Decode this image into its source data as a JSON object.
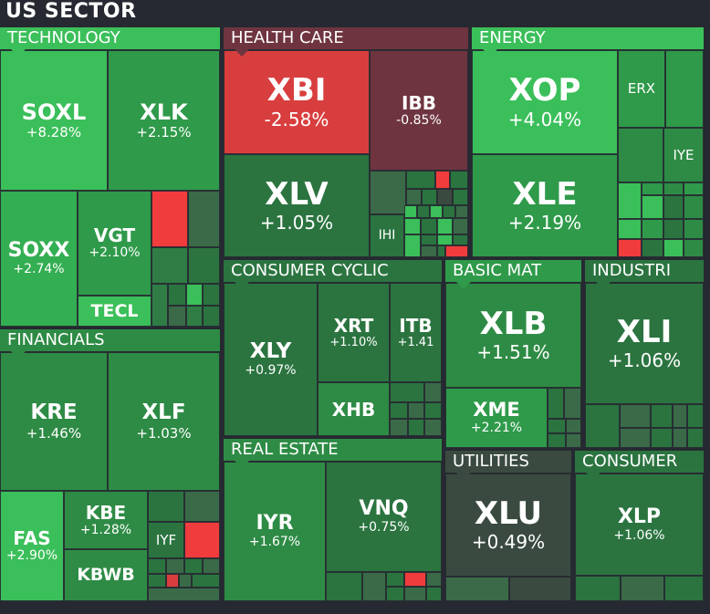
{
  "title": "US SECTOR",
  "colors": {
    "background": "#262931",
    "bright_green": "#3bbf5a",
    "green": "#2f9a4a",
    "dark_green": "#2e7a45",
    "red": "#f03c3c",
    "maroon": "#6e3540"
  },
  "sectors": {
    "technology": {
      "label": "TECHNOLOGY",
      "tiles": {
        "soxl": {
          "sym": "SOXL",
          "chg": "+8.28%"
        },
        "xlk": {
          "sym": "XLK",
          "chg": "+2.15%"
        },
        "soxx": {
          "sym": "SOXX",
          "chg": "+2.74%"
        },
        "vgt": {
          "sym": "VGT",
          "chg": "+2.10%"
        },
        "tecl": {
          "sym": "TECL"
        }
      }
    },
    "health_care": {
      "label": "HEALTH CARE",
      "tiles": {
        "xbi": {
          "sym": "XBI",
          "chg": "-2.58%"
        },
        "ibb": {
          "sym": "IBB",
          "chg": "-0.85%"
        },
        "xlv": {
          "sym": "XLV",
          "chg": "+1.05%"
        },
        "ihi": {
          "sym": "IHI"
        }
      }
    },
    "energy": {
      "label": "ENERGY",
      "tiles": {
        "xop": {
          "sym": "XOP",
          "chg": "+4.04%"
        },
        "erx": {
          "sym": "ERX"
        },
        "iye": {
          "sym": "IYE"
        },
        "xle": {
          "sym": "XLE",
          "chg": "+2.19%"
        }
      }
    },
    "financials": {
      "label": "FINANCIALS",
      "tiles": {
        "kre": {
          "sym": "KRE",
          "chg": "+1.46%"
        },
        "xlf": {
          "sym": "XLF",
          "chg": "+1.03%"
        },
        "fas": {
          "sym": "FAS",
          "chg": "+2.90%"
        },
        "kbe": {
          "sym": "KBE",
          "chg": "+1.28%"
        },
        "kbwb": {
          "sym": "KBWB"
        },
        "iyf": {
          "sym": "IYF"
        }
      }
    },
    "consumer_cyclic": {
      "label": "CONSUMER CYCLIC",
      "tiles": {
        "xly": {
          "sym": "XLY",
          "chg": "+0.97%"
        },
        "xrt": {
          "sym": "XRT",
          "chg": "+1.10%"
        },
        "itb": {
          "sym": "ITB",
          "chg": "+1.41"
        },
        "xhb": {
          "sym": "XHB"
        }
      }
    },
    "basic_mat": {
      "label": "BASIC MAT",
      "tiles": {
        "xlb": {
          "sym": "XLB",
          "chg": "+1.51%"
        },
        "xme": {
          "sym": "XME",
          "chg": "+2.21%"
        }
      }
    },
    "industri": {
      "label": "INDUSTRI",
      "tiles": {
        "xli": {
          "sym": "XLI",
          "chg": "+1.06%"
        }
      }
    },
    "real_estate": {
      "label": "REAL ESTATE",
      "tiles": {
        "iyr": {
          "sym": "IYR",
          "chg": "+1.67%"
        },
        "vnq": {
          "sym": "VNQ",
          "chg": "+0.75%"
        }
      }
    },
    "utilities": {
      "label": "UTILITIES",
      "tiles": {
        "xlu": {
          "sym": "XLU",
          "chg": "+0.49%"
        }
      }
    },
    "consumer": {
      "label": "CONSUMER",
      "tiles": {
        "xlp": {
          "sym": "XLP",
          "chg": "+1.06%"
        }
      }
    }
  }
}
